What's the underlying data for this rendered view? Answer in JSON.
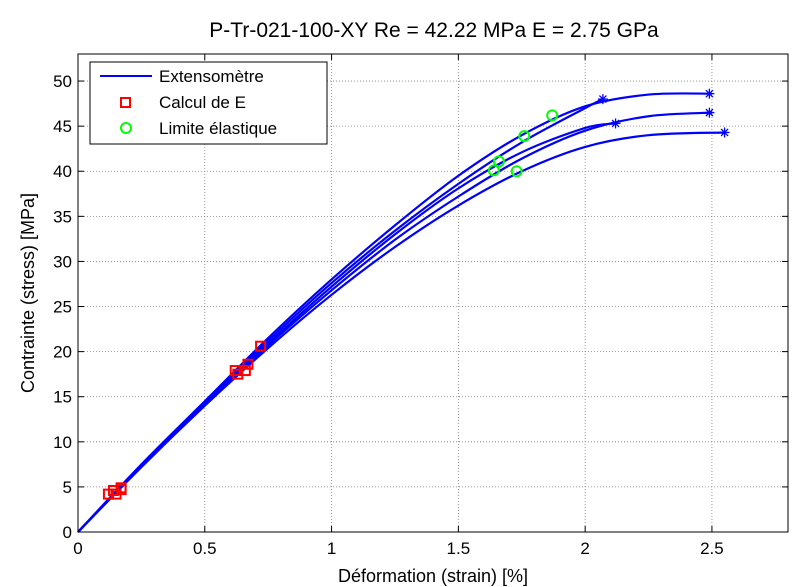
{
  "chart_data": {
    "type": "line",
    "title": "P-Tr-021-100-XY    Re = 42.22 MPa    E = 2.75 GPa",
    "xlabel": "Déformation (strain) [%]",
    "ylabel": "Contrainte (stress) [MPa]",
    "xlim": [
      0,
      2.8
    ],
    "ylim": [
      0,
      53
    ],
    "xticks": [
      0,
      0.5,
      1,
      1.5,
      2,
      2.5
    ],
    "xtick_labels": [
      "0",
      "0.5",
      "1",
      "1.5",
      "2",
      "2.5"
    ],
    "yticks": [
      0,
      5,
      10,
      15,
      20,
      25,
      30,
      35,
      40,
      45,
      50
    ],
    "ytick_labels": [
      "0",
      "5",
      "10",
      "15",
      "20",
      "25",
      "30",
      "35",
      "40",
      "45",
      "50"
    ],
    "grid": true,
    "legend_position": "top-left",
    "legend": [
      {
        "label": "Extensomètre",
        "marker": "line",
        "color": "#0000ff"
      },
      {
        "label": "Calcul de E",
        "marker": "square",
        "color": "#ff0000"
      },
      {
        "label": "Limite élastique",
        "marker": "circle",
        "color": "#00ff00"
      }
    ],
    "series": [
      {
        "x": [
          0,
          0.25,
          0.5,
          0.75,
          1.0,
          1.25,
          1.5,
          1.75,
          2.0,
          2.25,
          2.5
        ],
        "y": [
          0,
          7.5,
          14.5,
          21.5,
          28.0,
          34.0,
          39.5,
          44.0,
          47.2,
          48.5,
          48.6
        ],
        "end_x": 2.49,
        "end_y": 48.6
      },
      {
        "x": [
          0,
          0.25,
          0.5,
          0.75,
          1.0,
          1.25,
          1.5,
          1.75,
          2.0,
          2.07
        ],
        "y": [
          0,
          7.4,
          14.4,
          21.2,
          27.6,
          33.4,
          38.6,
          43.2,
          47.0,
          48.0
        ],
        "end_x": 2.07,
        "end_y": 48.0
      },
      {
        "x": [
          0,
          0.25,
          0.5,
          0.75,
          1.0,
          1.25,
          1.5,
          1.75,
          2.0,
          2.25,
          2.5
        ],
        "y": [
          0,
          7.3,
          14.2,
          20.7,
          26.8,
          32.4,
          37.2,
          41.4,
          44.5,
          46.1,
          46.5
        ],
        "end_x": 2.49,
        "end_y": 46.5
      },
      {
        "x": [
          0,
          0.25,
          0.5,
          0.75,
          1.0,
          1.25,
          1.5,
          1.75,
          2.0,
          2.12
        ],
        "y": [
          0,
          7.3,
          14.2,
          20.9,
          27.2,
          33.0,
          38.1,
          42.1,
          44.8,
          45.3
        ],
        "end_x": 2.12,
        "end_y": 45.3
      },
      {
        "x": [
          0,
          0.25,
          0.5,
          0.75,
          1.0,
          1.25,
          1.5,
          1.75,
          2.0,
          2.25,
          2.55
        ],
        "y": [
          0,
          7.2,
          14.0,
          20.4,
          26.3,
          31.6,
          36.2,
          40.0,
          42.7,
          44.0,
          44.3
        ],
        "end_x": 2.55,
        "end_y": 44.3
      }
    ],
    "calcul_e_points": [
      {
        "x": 0.12,
        "y": 4.2
      },
      {
        "x": 0.14,
        "y": 4.6
      },
      {
        "x": 0.15,
        "y": 4.2
      },
      {
        "x": 0.17,
        "y": 4.9
      },
      {
        "x": 0.17,
        "y": 4.7
      },
      {
        "x": 0.62,
        "y": 17.9
      },
      {
        "x": 0.63,
        "y": 17.5
      },
      {
        "x": 0.66,
        "y": 17.9
      },
      {
        "x": 0.67,
        "y": 18.6
      },
      {
        "x": 0.72,
        "y": 20.6
      }
    ],
    "limite_elastique_points": [
      {
        "x": 1.64,
        "y": 40.1
      },
      {
        "x": 1.66,
        "y": 41.1
      },
      {
        "x": 1.73,
        "y": 40.0
      },
      {
        "x": 1.76,
        "y": 43.9
      },
      {
        "x": 1.87,
        "y": 46.2
      }
    ],
    "colors": {
      "line": "#0000ff",
      "calcul_e": "#ff0000",
      "limite": "#00ff00",
      "grid": "#808080"
    }
  }
}
